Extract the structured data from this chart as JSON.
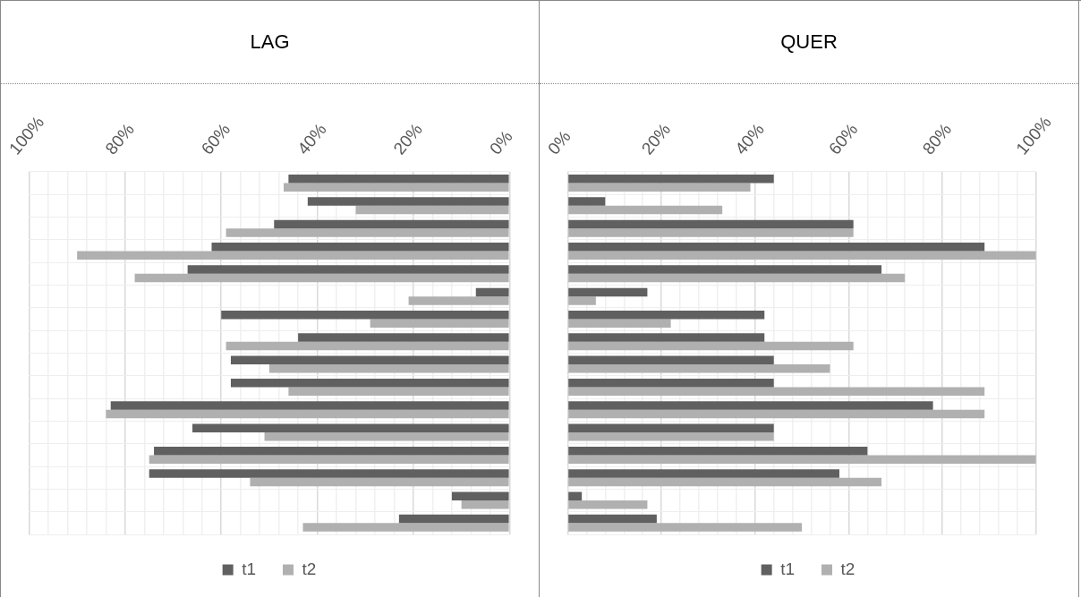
{
  "chart_data": [
    {
      "type": "bar",
      "title": "LAG",
      "orientation": "horizontal",
      "categories": [
        null,
        null,
        null,
        null,
        null,
        null,
        null,
        null,
        null,
        null,
        null,
        null,
        null,
        null,
        null,
        null
      ],
      "series": [
        {
          "name": "t1",
          "color": "#606060",
          "values": [
            46,
            42,
            49,
            62,
            67,
            7,
            60,
            44,
            58,
            58,
            83,
            66,
            74,
            75,
            12,
            23
          ]
        },
        {
          "name": "t2",
          "color": "#b0b0b0",
          "values": [
            47,
            32,
            59,
            90,
            78,
            21,
            29,
            59,
            50,
            46,
            84,
            51,
            75,
            54,
            10,
            43
          ]
        }
      ],
      "xlim": [
        100,
        0
      ],
      "xticks": [
        {
          "value": 100,
          "label": "100%"
        },
        {
          "value": 96,
          "label": null
        },
        {
          "value": 92,
          "label": null
        },
        {
          "value": 88,
          "label": null
        },
        {
          "value": 84,
          "label": null
        },
        {
          "value": 80,
          "label": "80%"
        },
        {
          "value": 76,
          "label": null
        },
        {
          "value": 72,
          "label": null
        },
        {
          "value": 68,
          "label": null
        },
        {
          "value": 64,
          "label": null
        },
        {
          "value": 60,
          "label": "60%"
        },
        {
          "value": 56,
          "label": null
        },
        {
          "value": 52,
          "label": null
        },
        {
          "value": 48,
          "label": null
        },
        {
          "value": 44,
          "label": null
        },
        {
          "value": 40,
          "label": "40%"
        },
        {
          "value": 36,
          "label": null
        },
        {
          "value": 32,
          "label": null
        },
        {
          "value": 28,
          "label": null
        },
        {
          "value": 24,
          "label": null
        },
        {
          "value": 20,
          "label": "20%"
        },
        {
          "value": 16,
          "label": null
        },
        {
          "value": 12,
          "label": null
        },
        {
          "value": 8,
          "label": null
        },
        {
          "value": 4,
          "label": null
        },
        {
          "value": 0,
          "label": "0%"
        }
      ],
      "grid": true,
      "legend": "bottom"
    },
    {
      "type": "bar",
      "title": "QUER",
      "orientation": "horizontal",
      "categories": [
        null,
        null,
        null,
        null,
        null,
        null,
        null,
        null,
        null,
        null,
        null,
        null,
        null,
        null,
        null,
        null
      ],
      "series": [
        {
          "name": "t1",
          "color": "#606060",
          "values": [
            44,
            8,
            61,
            89,
            67,
            17,
            42,
            42,
            44,
            44,
            78,
            44,
            64,
            58,
            3,
            19
          ]
        },
        {
          "name": "t2",
          "color": "#b0b0b0",
          "values": [
            39,
            33,
            61,
            100,
            72,
            6,
            22,
            61,
            56,
            89,
            89,
            44,
            100,
            67,
            17,
            50
          ]
        }
      ],
      "xlim": [
        0,
        100
      ],
      "xticks": [
        {
          "value": 0,
          "label": "0%"
        },
        {
          "value": 4,
          "label": null
        },
        {
          "value": 8,
          "label": null
        },
        {
          "value": 12,
          "label": null
        },
        {
          "value": 16,
          "label": null
        },
        {
          "value": 20,
          "label": "20%"
        },
        {
          "value": 24,
          "label": null
        },
        {
          "value": 28,
          "label": null
        },
        {
          "value": 32,
          "label": null
        },
        {
          "value": 36,
          "label": null
        },
        {
          "value": 40,
          "label": "40%"
        },
        {
          "value": 44,
          "label": null
        },
        {
          "value": 48,
          "label": null
        },
        {
          "value": 52,
          "label": null
        },
        {
          "value": 56,
          "label": null
        },
        {
          "value": 60,
          "label": "60%"
        },
        {
          "value": 64,
          "label": null
        },
        {
          "value": 68,
          "label": null
        },
        {
          "value": 72,
          "label": null
        },
        {
          "value": 76,
          "label": null
        },
        {
          "value": 80,
          "label": "80%"
        },
        {
          "value": 84,
          "label": null
        },
        {
          "value": 88,
          "label": null
        },
        {
          "value": 92,
          "label": null
        },
        {
          "value": 96,
          "label": null
        },
        {
          "value": 100,
          "label": "100%"
        }
      ],
      "grid": true,
      "legend": "bottom"
    }
  ]
}
